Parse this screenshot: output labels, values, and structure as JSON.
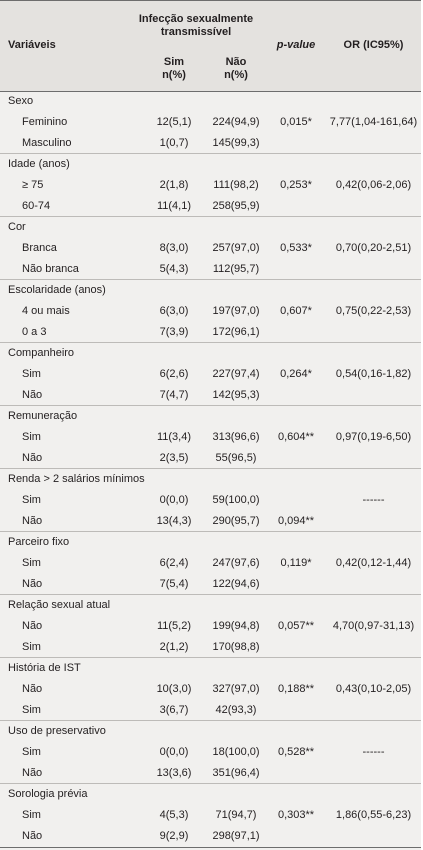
{
  "header": {
    "var_label": "Variáveis",
    "group_label_line1": "Infecção sexualmente",
    "group_label_line2": "transmissível",
    "sim_label": "Sim",
    "nao_label": "Não",
    "n_pct_sim": "n(%)",
    "n_pct_nao": "n(%)",
    "pvalue_label": "p-value",
    "or_label": "OR (IC95%)"
  },
  "groups": [
    {
      "title": "Sexo",
      "rows": [
        {
          "label": "Feminino",
          "sim": "12(5,1)",
          "nao": "224(94,9)",
          "p": "0,015*",
          "or": "7,77(1,04-161,64)"
        },
        {
          "label": "Masculino",
          "sim": "1(0,7)",
          "nao": "145(99,3)",
          "p": "",
          "or": ""
        }
      ]
    },
    {
      "title": "Idade (anos)",
      "rows": [
        {
          "label": "≥ 75",
          "sim": "2(1,8)",
          "nao": "111(98,2)",
          "p": "0,253*",
          "or": "0,42(0,06-2,06)"
        },
        {
          "label": "60-74",
          "sim": "11(4,1)",
          "nao": "258(95,9)",
          "p": "",
          "or": ""
        }
      ]
    },
    {
      "title": "Cor",
      "rows": [
        {
          "label": "Branca",
          "sim": "8(3,0)",
          "nao": "257(97,0)",
          "p": "0,533*",
          "or": "0,70(0,20-2,51)"
        },
        {
          "label": "Não branca",
          "sim": "5(4,3)",
          "nao": "112(95,7)",
          "p": "",
          "or": ""
        }
      ]
    },
    {
      "title": "Escolaridade (anos)",
      "rows": [
        {
          "label": "4 ou mais",
          "sim": "6(3,0)",
          "nao": "197(97,0)",
          "p": "0,607*",
          "or": "0,75(0,22-2,53)"
        },
        {
          "label": "0 a 3",
          "sim": "7(3,9)",
          "nao": "172(96,1)",
          "p": "",
          "or": ""
        }
      ]
    },
    {
      "title": "Companheiro",
      "rows": [
        {
          "label": "Sim",
          "sim": "6(2,6)",
          "nao": "227(97,4)",
          "p": "0,264*",
          "or": "0,54(0,16-1,82)"
        },
        {
          "label": "Não",
          "sim": "7(4,7)",
          "nao": "142(95,3)",
          "p": "",
          "or": ""
        }
      ]
    },
    {
      "title": "Remuneração",
      "rows": [
        {
          "label": "Sim",
          "sim": "11(3,4)",
          "nao": "313(96,6)",
          "p": "0,604**",
          "or": "0,97(0,19-6,50)"
        },
        {
          "label": "Não",
          "sim": "2(3,5)",
          "nao": "55(96,5)",
          "p": "",
          "or": ""
        }
      ]
    },
    {
      "title": "Renda > 2 salários mínimos",
      "rows": [
        {
          "label": "Sim",
          "sim": "0(0,0)",
          "nao": "59(100,0)",
          "p": "",
          "or": "------"
        },
        {
          "label": "Não",
          "sim": "13(4,3)",
          "nao": "290(95,7)",
          "p": "0,094**",
          "or": ""
        }
      ]
    },
    {
      "title": "Parceiro fixo",
      "rows": [
        {
          "label": "Sim",
          "sim": "6(2,4)",
          "nao": "247(97,6)",
          "p": "0,119*",
          "or": "0,42(0,12-1,44)"
        },
        {
          "label": "Não",
          "sim": "7(5,4)",
          "nao": "122(94,6)",
          "p": "",
          "or": ""
        }
      ]
    },
    {
      "title": "Relação sexual atual",
      "rows": [
        {
          "label": "Não",
          "sim": "11(5,2)",
          "nao": "199(94,8)",
          "p": "0,057**",
          "or": "4,70(0,97-31,13)"
        },
        {
          "label": "Sim",
          "sim": "2(1,2)",
          "nao": "170(98,8)",
          "p": "",
          "or": ""
        }
      ]
    },
    {
      "title": "História de IST",
      "rows": [
        {
          "label": "Não",
          "sim": "10(3,0)",
          "nao": "327(97,0)",
          "p": "0,188**",
          "or": "0,43(0,10-2,05)"
        },
        {
          "label": "Sim",
          "sim": "3(6,7)",
          "nao": "42(93,3)",
          "p": "",
          "or": ""
        }
      ]
    },
    {
      "title": "Uso de preservativo",
      "rows": [
        {
          "label": "Sim",
          "sim": "0(0,0)",
          "nao": "18(100,0)",
          "p": "0,528**",
          "or": "------"
        },
        {
          "label": "Não",
          "sim": "13(3,6)",
          "nao": "351(96,4)",
          "p": "",
          "or": ""
        }
      ]
    },
    {
      "title": "Sorologia prévia",
      "rows": [
        {
          "label": "Sim",
          "sim": "4(5,3)",
          "nao": "71(94,7)",
          "p": "0,303**",
          "or": "1,86(0,55-6,23)"
        },
        {
          "label": "Não",
          "sim": "9(2,9)",
          "nao": "298(97,1)",
          "p": "",
          "or": ""
        }
      ]
    }
  ]
}
